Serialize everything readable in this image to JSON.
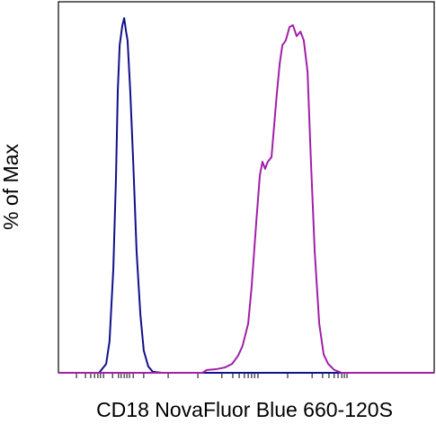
{
  "chart_data": {
    "type": "line",
    "xlabel": "CD18 NovaFluor Blue 660-120S",
    "ylabel": "% of Max",
    "xlim": [
      0,
      100
    ],
    "ylim": [
      0,
      104.6
    ],
    "xticks": [
      4.8,
      7.2,
      8.6,
      9.6,
      10.5,
      11.2,
      12.0,
      14.4,
      16.0,
      16.7,
      17.5,
      18.2,
      18.9,
      19.9,
      22.7,
      29.2,
      37.1,
      43.5,
      46.4,
      48.1,
      49.5,
      50.5,
      51.4,
      52.2,
      53.1,
      61.0,
      67.5,
      70.3,
      72.0,
      73.4,
      74.4,
      75.4,
      76.1,
      76.8
    ],
    "series": [
      {
        "color": "#10108c",
        "x": [
          0,
          10.8,
          11.2,
          12.7,
          13.6,
          14.6,
          15.3,
          15.8,
          16.3,
          17.0,
          17.5,
          18.0,
          18.4,
          19.1,
          19.9,
          20.8,
          21.8,
          22.7,
          23.9,
          25.1,
          27.5,
          100
        ],
        "values": [
          0,
          0,
          0.5,
          2.5,
          8.9,
          29.1,
          54.4,
          79.7,
          92.4,
          97.9,
          100,
          96.2,
          93.7,
          79.7,
          59.5,
          34.2,
          16.5,
          6.3,
          1.8,
          0.3,
          0,
          0
        ]
      },
      {
        "color": "#a020a8",
        "x": [
          0,
          38.3,
          39.5,
          41.9,
          44.3,
          46.2,
          47.8,
          49.0,
          50.5,
          51.4,
          52.6,
          53.6,
          54.3,
          55.0,
          55.7,
          56.7,
          57.4,
          58.1,
          58.9,
          59.6,
          60.5,
          61.5,
          62.4,
          63.4,
          64.4,
          65.3,
          66.3,
          67.2,
          68.2,
          69.4,
          70.6,
          71.8,
          73.4,
          75.4,
          100
        ],
        "values": [
          0,
          0,
          0.8,
          1.0,
          1.5,
          2.5,
          4.8,
          7.6,
          13.9,
          24.1,
          41.8,
          55.7,
          59.5,
          57.5,
          59.5,
          60.8,
          69.6,
          78.5,
          87.3,
          92.4,
          93.7,
          97.5,
          98.0,
          94.9,
          96.2,
          93.7,
          84.8,
          59.5,
          34.2,
          13.9,
          5.1,
          2.5,
          0.8,
          0,
          0
        ]
      }
    ]
  }
}
